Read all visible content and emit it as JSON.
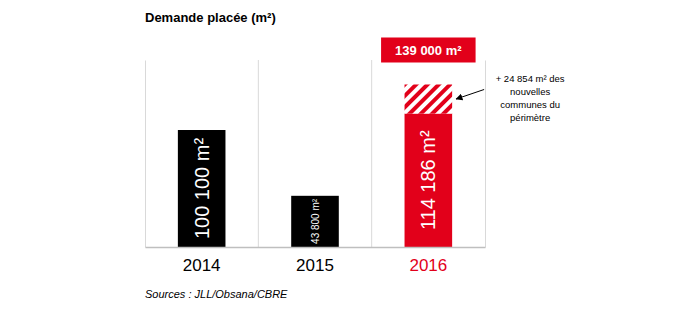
{
  "chart_data": {
    "type": "bar",
    "title": "Demande placée (m²)",
    "categories": [
      "2014",
      "2015",
      "2016"
    ],
    "series": [
      {
        "values": [
          100100,
          43800,
          114186
        ],
        "value_labels": [
          "100 100 m²",
          "43 800 m²",
          "114 186 m²"
        ],
        "colors": [
          "#000000",
          "#000000",
          "#e2001a"
        ],
        "data_labels": true
      },
      {
        "values": [
          null,
          null,
          24854
        ],
        "color": "#e2001a",
        "data_labels": false
      }
    ],
    "stacked": true,
    "ylim": [
      0,
      160000
    ],
    "yticks": [],
    "grid": true,
    "tick_labels": "x",
    "annotations": [
      {
        "text": "139 000 m²",
        "category": "2016"
      },
      {
        "text": "+ 24 854 m² des nouvelles communes du périmètre",
        "category": "2016"
      }
    ],
    "source": "Sources : JLL/Obsana/CBRE"
  }
}
